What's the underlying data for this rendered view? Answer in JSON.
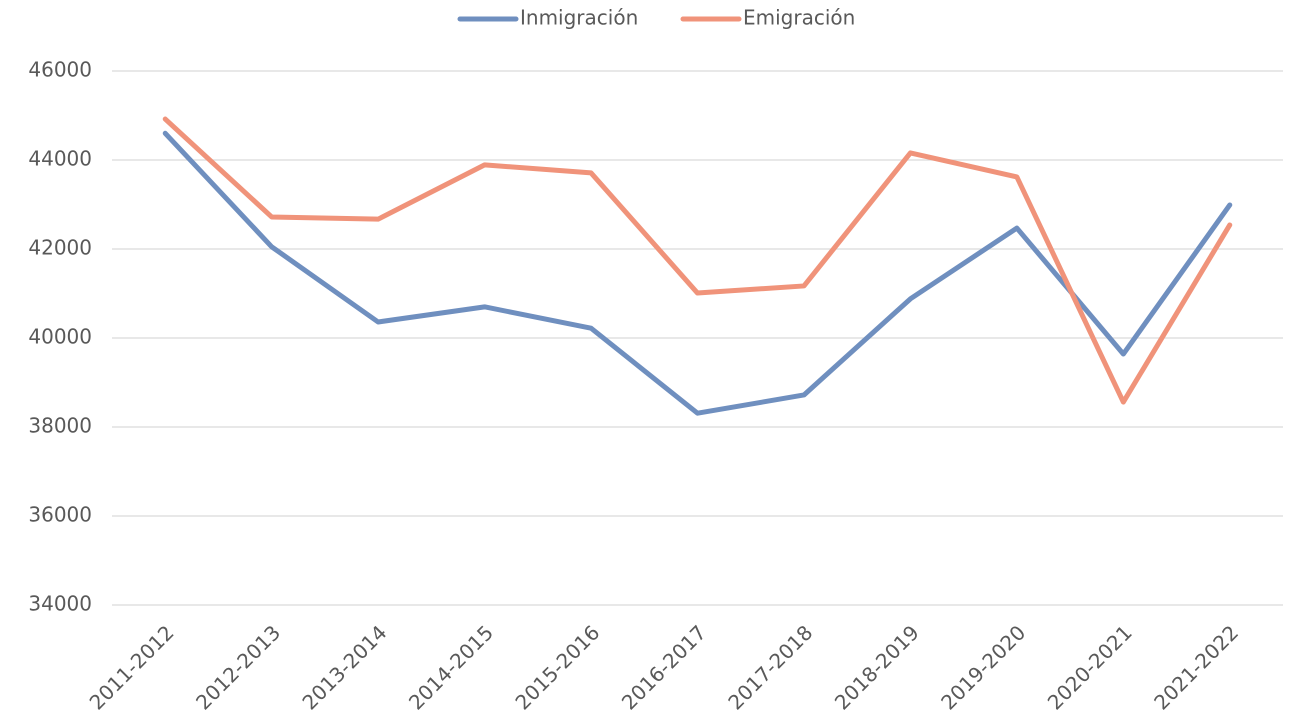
{
  "chart_data": {
    "type": "line",
    "categories": [
      "2011-2012",
      "2012-2013",
      "2013-2014",
      "2014-2015",
      "2015-2016",
      "2016-2017",
      "2017-2018",
      "2018-2019",
      "2019-2020",
      "2020-2021",
      "2021-2022"
    ],
    "series": [
      {
        "name": "Inmigración",
        "color": "#6f8fbf",
        "values": [
          44600,
          42050,
          40360,
          40700,
          40220,
          38310,
          38720,
          40880,
          42470,
          39640,
          42990
        ]
      },
      {
        "name": "Emigración",
        "color": "#f0937a",
        "values": [
          44920,
          42720,
          42670,
          43890,
          43710,
          41010,
          41170,
          44160,
          43620,
          38560,
          42540
        ]
      }
    ],
    "ylim": [
      34000,
      46000
    ],
    "yticks": [
      34000,
      36000,
      38000,
      40000,
      42000,
      44000,
      46000
    ],
    "grid": true,
    "legend": "top"
  }
}
